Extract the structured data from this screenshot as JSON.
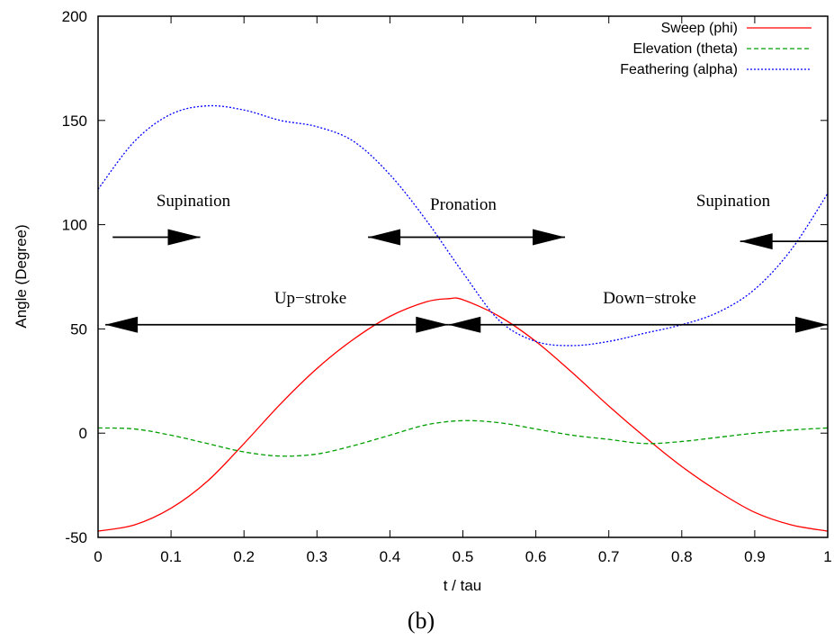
{
  "chart_data": {
    "type": "line",
    "xlabel": "t / tau",
    "ylabel": "Angle (Degree)",
    "xlim": [
      0,
      1
    ],
    "ylim": [
      -50,
      200
    ],
    "xticks": [
      "0",
      "0.1",
      "0.2",
      "0.3",
      "0.4",
      "0.5",
      "0.6",
      "0.7",
      "0.8",
      "0.9",
      "1"
    ],
    "yticks": [
      "-50",
      "0",
      "50",
      "100",
      "150",
      "200"
    ],
    "grid": false,
    "legend_position": "top-right",
    "caption": "(b)",
    "series": [
      {
        "name": "Sweep (phi)",
        "color": "#ff0000",
        "dash": "solid",
        "x": [
          0,
          0.05,
          0.1,
          0.15,
          0.2,
          0.25,
          0.3,
          0.35,
          0.4,
          0.45,
          0.48,
          0.5,
          0.55,
          0.6,
          0.65,
          0.7,
          0.75,
          0.8,
          0.85,
          0.9,
          0.95,
          1
        ],
        "y": [
          -47,
          -44,
          -36,
          -23,
          -5,
          14,
          31,
          45,
          56,
          63,
          64.5,
          64,
          56,
          44,
          29,
          13,
          -2,
          -16,
          -28,
          -38,
          -44,
          -47
        ]
      },
      {
        "name": "Elevation (theta)",
        "color": "#00a000",
        "dash": "dashed",
        "x": [
          0,
          0.05,
          0.1,
          0.15,
          0.2,
          0.25,
          0.3,
          0.35,
          0.4,
          0.45,
          0.5,
          0.55,
          0.6,
          0.65,
          0.7,
          0.75,
          0.8,
          0.85,
          0.9,
          0.95,
          1
        ],
        "y": [
          2.5,
          2,
          -1,
          -5,
          -9,
          -11,
          -10,
          -6,
          -1,
          4,
          6,
          5,
          2,
          -1,
          -3,
          -5,
          -4,
          -2,
          0,
          1.5,
          2.5
        ]
      },
      {
        "name": "Feathering (alpha)",
        "color": "#0000ff",
        "dash": "dotted",
        "x": [
          0,
          0.05,
          0.1,
          0.15,
          0.2,
          0.25,
          0.3,
          0.35,
          0.4,
          0.45,
          0.5,
          0.55,
          0.6,
          0.65,
          0.7,
          0.75,
          0.8,
          0.85,
          0.9,
          0.95,
          1
        ],
        "y": [
          117,
          140,
          153,
          157,
          155,
          150,
          147,
          140,
          124,
          102,
          77,
          54,
          44,
          42,
          44,
          48,
          52,
          58,
          69,
          88,
          115
        ]
      }
    ],
    "annotations": {
      "supination_left": {
        "label": "Supination",
        "x": 0.13,
        "y": 110,
        "arrow": {
          "from": [
            0.02,
            94
          ],
          "to": [
            0.14,
            94
          ],
          "head": "end"
        }
      },
      "pronation": {
        "label": "Pronation",
        "x": 0.5,
        "y": 108,
        "arrow": {
          "from": [
            0.37,
            94
          ],
          "to": [
            0.64,
            94
          ],
          "head": "both"
        }
      },
      "supination_right": {
        "label": "Supination",
        "x": 0.92,
        "y": 110,
        "arrow": {
          "from": [
            1.0,
            92
          ],
          "to": [
            0.88,
            92
          ],
          "head": "end"
        }
      },
      "upstroke": {
        "label": "Up−stroke",
        "x": 0.24,
        "y": 64,
        "arrow": {
          "from": [
            0.01,
            52
          ],
          "to": [
            0.48,
            52
          ],
          "head": "both"
        }
      },
      "downstroke": {
        "label": "Down−stroke",
        "x": 0.74,
        "y": 64,
        "arrow": {
          "from": [
            0.48,
            52
          ],
          "to": [
            1.0,
            52
          ],
          "head": "both"
        }
      }
    }
  }
}
